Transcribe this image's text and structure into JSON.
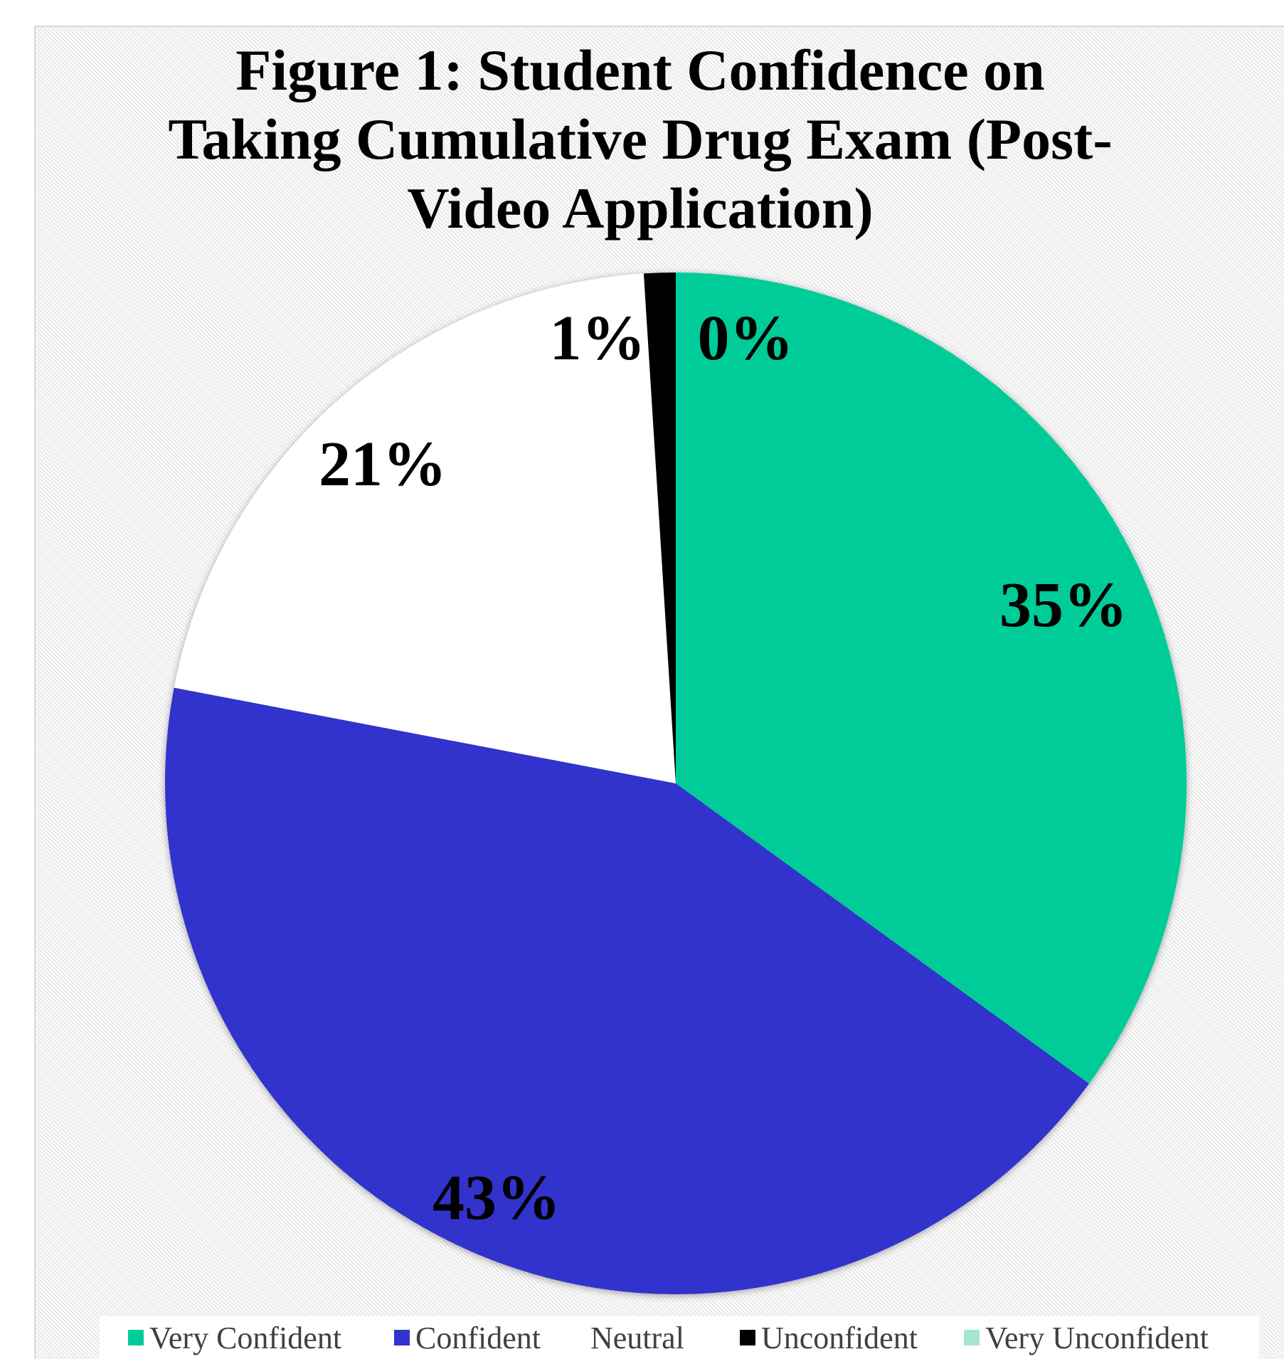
{
  "chart_data": {
    "type": "pie",
    "title": "Figure 1: Student Confidence on Taking Cumulative Drug Exam (Post-Video Application)",
    "title_lines": [
      "Figure 1: Student Confidence on",
      "Taking Cumulative Drug Exam (Post-",
      "Video Application)"
    ],
    "slices": [
      {
        "name": "Very Confident",
        "value": 35,
        "label": "35%",
        "color": "#00cc99"
      },
      {
        "name": "Confident",
        "value": 43,
        "label": "43%",
        "color": "#3333cc"
      },
      {
        "name": "Neutral",
        "value": 21,
        "label": "21%",
        "color": "#ffffff"
      },
      {
        "name": "Unconfident",
        "value": 1,
        "label": "1%",
        "color": "#000000"
      },
      {
        "name": "Very Unconfident",
        "value": 0,
        "label": "0%",
        "color": "#a6e5cf"
      }
    ],
    "legend_position": "bottom"
  }
}
